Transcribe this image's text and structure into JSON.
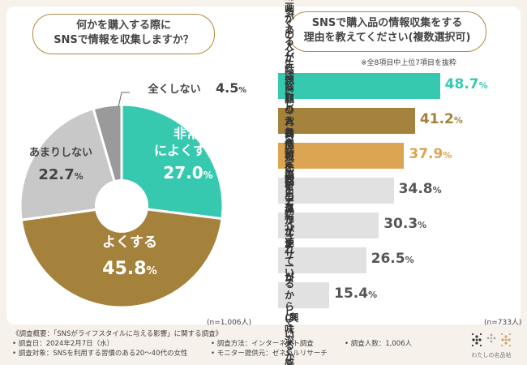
{
  "left_question": "何かを購入する際に\nSNSで情報を収集しますか？",
  "right_question": "SNSで購入品の情報収集をする\n理由を教えてください(複数選択可)",
  "right_note": "※全8項目中上位7項目を抜粋",
  "left_n": "(n=1,006人)",
  "right_n": "(n=733人)",
  "footer": {
    "line1": "《調査概要：「SNSがライフスタイルに与える影響」に関する調査》",
    "date": "• 調査日：2024年2月7日（水）",
    "target": "• 調査対象：SNSを利用する習慣のある20〜40代の女性",
    "method": "• 調査方法：インターネット調査",
    "provider": "• モニター提供元：ゼネラルリサーチ",
    "count": "• 調査人数：1,006人"
  },
  "logo_text": "わたしの名品帖",
  "colors": {
    "teal": "#37c9b0",
    "brown": "#a5823b",
    "gold": "#dba552",
    "gray": "#c8c8c8",
    "dark_gray": "#9a9a9a",
    "border": "#b08a3e"
  },
  "chart_data": [
    {
      "type": "pie",
      "title": "何かを購入する際にSNSで情報を収集しますか？",
      "slices": [
        {
          "label": "非常によくする",
          "value": 27.0
        },
        {
          "label": "よくする",
          "value": 45.8
        },
        {
          "label": "あまりしない",
          "value": 22.7
        },
        {
          "label": "全くしない",
          "value": 4.5
        }
      ],
      "unit": "%"
    },
    {
      "type": "bar",
      "title": "SNSで購入品の情報収集をする理由を教えてください(複数選択可)",
      "categories": [
        "多くの人が\n話題にしているから",
        "写真や動画があると生活に取り\n入れるイメージが沸きやすいから",
        "商品の背景情報を\n知れるから",
        "商品の比較をできるから",
        "流行の巡りが速いから",
        "特定のインフルエンサー\nが紹介しているから",
        "面白く紹介されている\nから(興味深く感じるから)"
      ],
      "values": [
        48.7,
        41.2,
        37.9,
        34.8,
        30.3,
        26.5,
        15.4
      ],
      "unit": "%"
    }
  ]
}
